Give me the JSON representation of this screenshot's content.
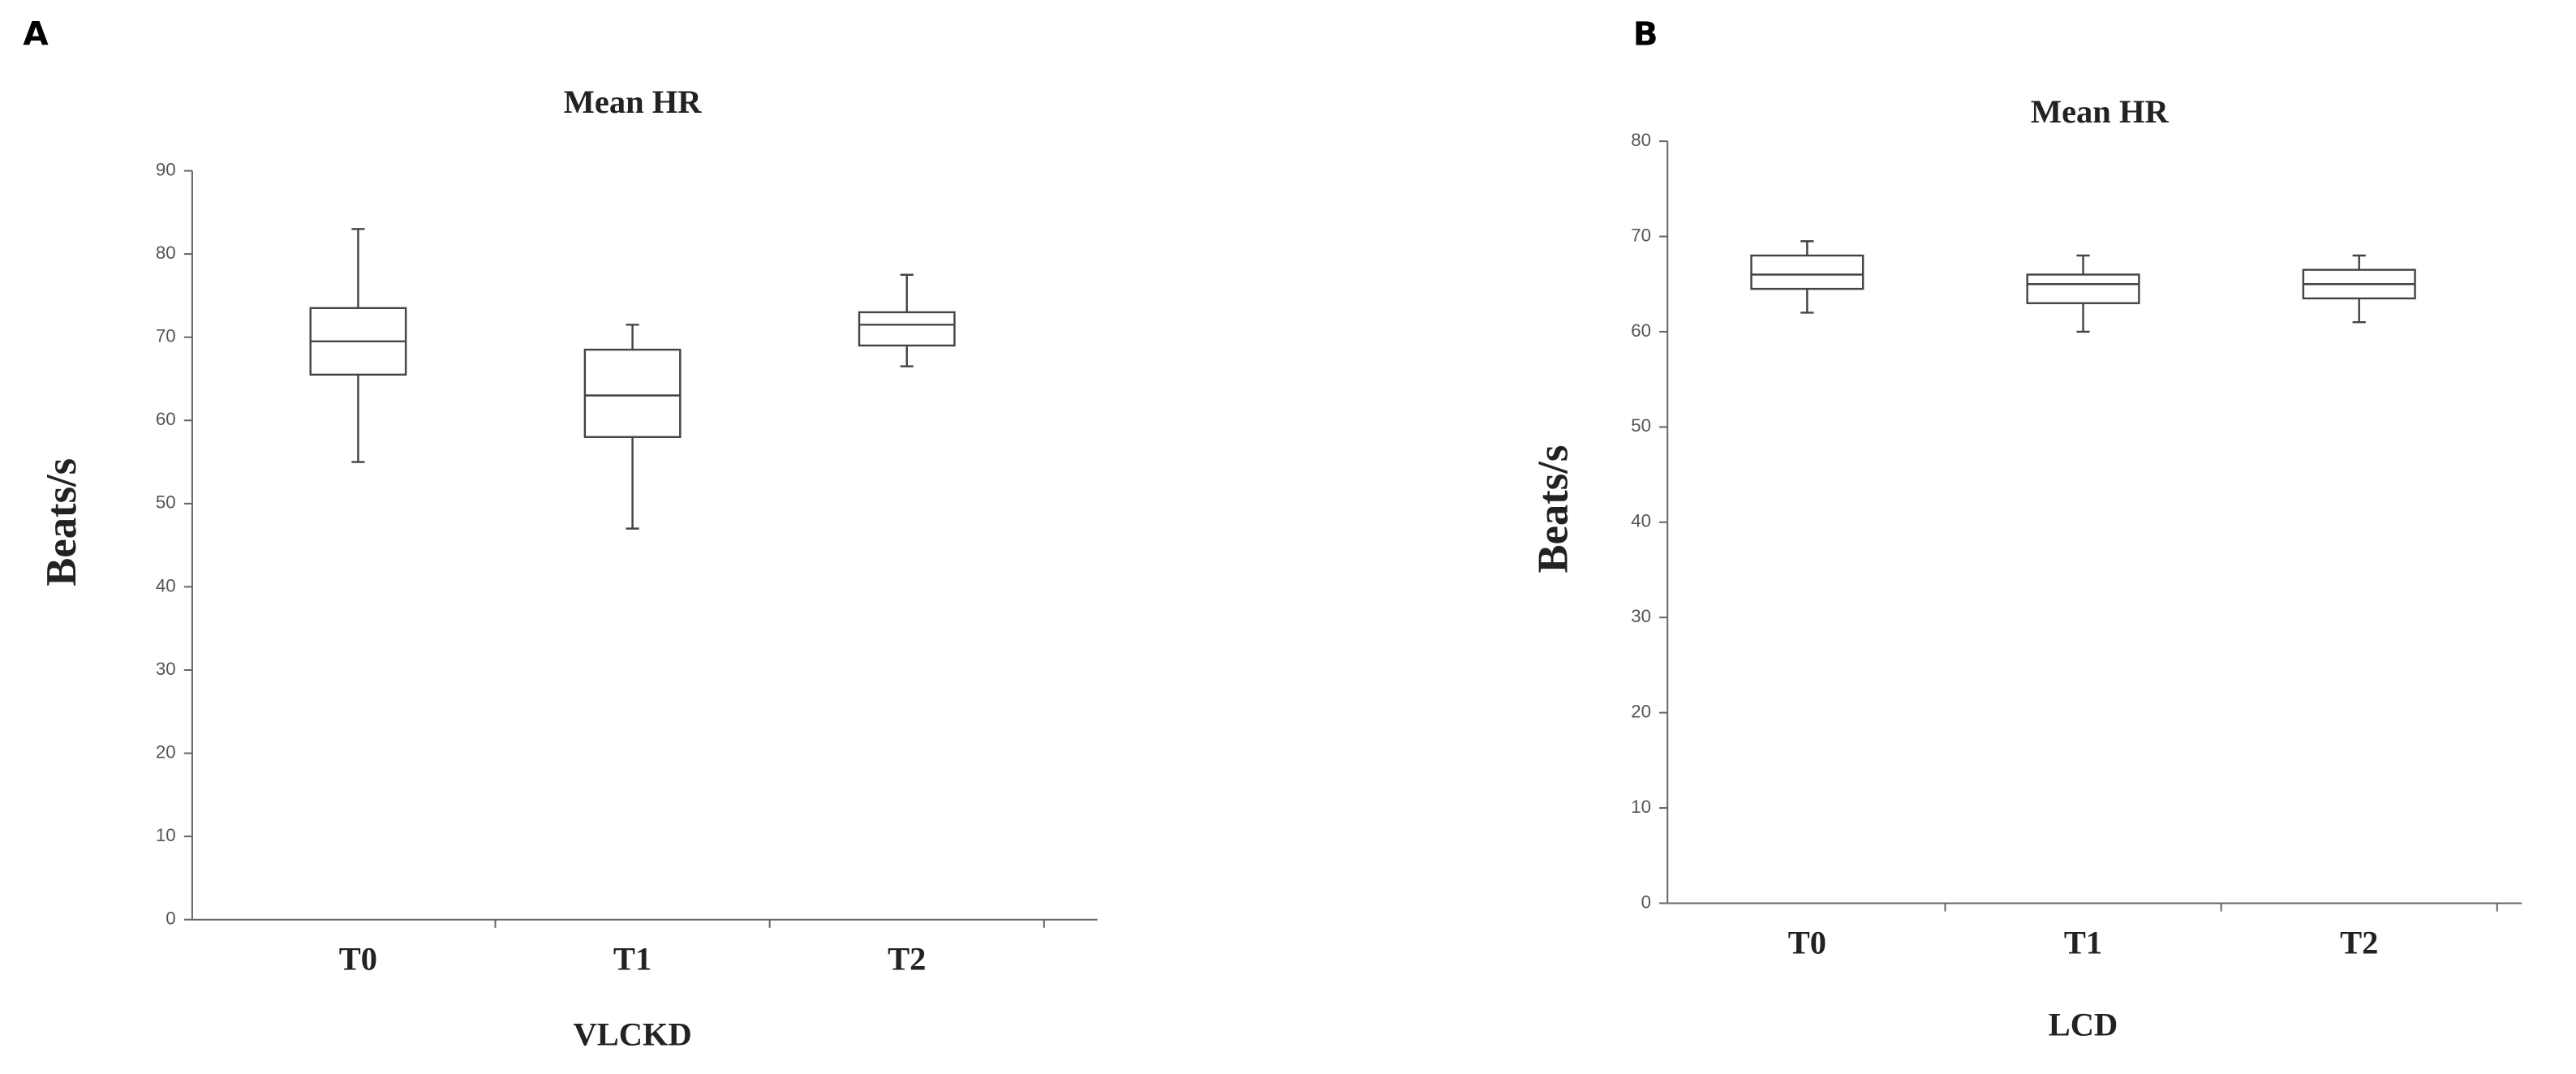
{
  "chart_data": [
    {
      "type": "box",
      "panel": "A",
      "title": "Mean HR",
      "y_label": "Beats/s",
      "x_label": "VLCKD",
      "categories": [
        "T0",
        "T1",
        "T2"
      ],
      "boxes": [
        {
          "min": 55,
          "q1": 65.5,
          "median": 69.5,
          "q3": 73.5,
          "max": 83
        },
        {
          "min": 47,
          "q1": 58,
          "median": 63,
          "q3": 68.5,
          "max": 71.5
        },
        {
          "min": 66.5,
          "q1": 69,
          "median": 71.5,
          "q3": 73,
          "max": 77.5
        }
      ],
      "ylim": [
        0,
        90
      ],
      "yticks": [
        0,
        10,
        20,
        30,
        40,
        50,
        60,
        70,
        80,
        90
      ],
      "color": "#444444"
    },
    {
      "type": "box",
      "panel": "B",
      "title": "Mean HR",
      "y_label": "Beats/s",
      "x_label": "LCD",
      "categories": [
        "T0",
        "T1",
        "T2"
      ],
      "boxes": [
        {
          "min": 62,
          "q1": 64.5,
          "median": 66,
          "q3": 68,
          "max": 69.5
        },
        {
          "min": 60,
          "q1": 63,
          "median": 65,
          "q3": 66,
          "max": 68
        },
        {
          "min": 61,
          "q1": 63.5,
          "median": 65,
          "q3": 66.5,
          "max": 68
        }
      ],
      "ylim": [
        0,
        80
      ],
      "yticks": [
        0,
        10,
        20,
        30,
        40,
        50,
        60,
        70,
        80
      ],
      "color": "#444444"
    }
  ]
}
